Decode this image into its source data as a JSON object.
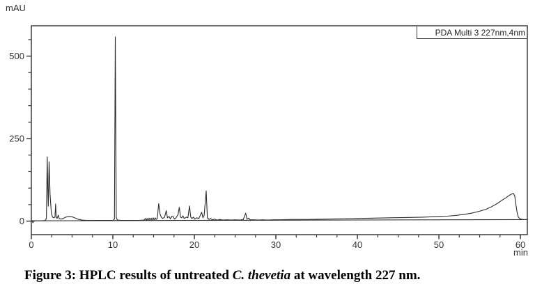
{
  "legend": {
    "label": "PDA Multi 3 227nm,4nm"
  },
  "caption": {
    "prefix": "Figure 3: HPLC results of untreated ",
    "species": "C. thevetia",
    "suffix": " at wavelength 227 nm."
  },
  "chart_data": {
    "type": "line",
    "title": "",
    "xlabel": "min",
    "ylabel": "mAU",
    "xlim": [
      0,
      60.85
    ],
    "ylim": [
      -41,
      592
    ],
    "x_ticks_major": [
      0,
      10,
      20,
      30,
      40,
      50,
      60
    ],
    "x_minor_step": 2.5,
    "y_ticks_major": [
      0,
      250,
      500
    ],
    "y_minor_step": 50,
    "grid": false,
    "legend_position": "top-right",
    "axis_color": "#3a3a3a",
    "series": [
      {
        "name": "PDA Multi 3 227nm,4nm",
        "color": "#2b2b2b",
        "points": [
          [
            0,
            1
          ],
          [
            0.1,
            1
          ],
          [
            0.2,
            -5
          ],
          [
            0.3,
            0
          ],
          [
            0.6,
            1
          ],
          [
            1.0,
            1
          ],
          [
            1.4,
            1
          ],
          [
            1.7,
            2
          ],
          [
            1.85,
            8
          ],
          [
            1.95,
            195
          ],
          [
            2.02,
            100
          ],
          [
            2.08,
            45
          ],
          [
            2.18,
            180
          ],
          [
            2.3,
            80
          ],
          [
            2.45,
            25
          ],
          [
            2.6,
            12
          ],
          [
            2.75,
            10
          ],
          [
            2.9,
            12
          ],
          [
            2.97,
            52
          ],
          [
            3.05,
            12
          ],
          [
            3.15,
            8
          ],
          [
            3.3,
            18
          ],
          [
            3.42,
            8
          ],
          [
            3.6,
            6
          ],
          [
            3.9,
            8
          ],
          [
            4.2,
            12
          ],
          [
            4.6,
            14
          ],
          [
            5.0,
            13
          ],
          [
            5.4,
            9
          ],
          [
            5.8,
            5
          ],
          [
            6.2,
            3
          ],
          [
            6.8,
            2
          ],
          [
            7.5,
            2
          ],
          [
            8.2,
            2
          ],
          [
            9.0,
            2
          ],
          [
            9.6,
            2
          ],
          [
            10.0,
            2
          ],
          [
            10.2,
            6
          ],
          [
            10.3,
            558
          ],
          [
            10.42,
            12
          ],
          [
            10.55,
            3
          ],
          [
            11.0,
            2
          ],
          [
            11.8,
            2
          ],
          [
            12.5,
            2
          ],
          [
            13.2,
            2
          ],
          [
            13.8,
            3
          ],
          [
            14.0,
            8
          ],
          [
            14.08,
            2
          ],
          [
            14.2,
            8
          ],
          [
            14.3,
            2
          ],
          [
            14.45,
            9
          ],
          [
            14.55,
            3
          ],
          [
            14.7,
            9
          ],
          [
            14.8,
            3
          ],
          [
            14.95,
            10
          ],
          [
            15.05,
            4
          ],
          [
            15.2,
            10
          ],
          [
            15.3,
            5
          ],
          [
            15.45,
            8
          ],
          [
            15.62,
            53
          ],
          [
            15.8,
            20
          ],
          [
            15.95,
            12
          ],
          [
            16.1,
            8
          ],
          [
            16.35,
            12
          ],
          [
            16.55,
            32
          ],
          [
            16.7,
            10
          ],
          [
            16.9,
            14
          ],
          [
            17.05,
            7
          ],
          [
            17.25,
            15
          ],
          [
            17.4,
            14
          ],
          [
            17.55,
            6
          ],
          [
            17.75,
            10
          ],
          [
            18.0,
            20
          ],
          [
            18.15,
            42
          ],
          [
            18.3,
            12
          ],
          [
            18.45,
            10
          ],
          [
            18.6,
            16
          ],
          [
            18.75,
            8
          ],
          [
            19.0,
            12
          ],
          [
            19.2,
            10
          ],
          [
            19.4,
            46
          ],
          [
            19.55,
            12
          ],
          [
            19.7,
            8
          ],
          [
            19.9,
            12
          ],
          [
            20.05,
            6
          ],
          [
            20.3,
            10
          ],
          [
            20.55,
            8
          ],
          [
            20.9,
            27
          ],
          [
            21.05,
            10
          ],
          [
            21.2,
            18
          ],
          [
            21.45,
            92
          ],
          [
            21.6,
            10
          ],
          [
            21.8,
            5
          ],
          [
            22.0,
            8
          ],
          [
            22.2,
            4
          ],
          [
            22.5,
            6
          ],
          [
            22.8,
            3
          ],
          [
            23.1,
            5
          ],
          [
            23.5,
            3
          ],
          [
            24.0,
            4
          ],
          [
            24.5,
            3
          ],
          [
            25.0,
            4
          ],
          [
            25.6,
            3
          ],
          [
            26.0,
            5
          ],
          [
            26.3,
            24
          ],
          [
            26.45,
            6
          ],
          [
            26.65,
            9
          ],
          [
            26.85,
            4
          ],
          [
            27.3,
            4
          ],
          [
            27.8,
            3
          ],
          [
            28.4,
            4
          ],
          [
            29.0,
            3
          ],
          [
            29.6,
            4
          ],
          [
            30.5,
            4
          ],
          [
            32,
            5
          ],
          [
            34,
            5
          ],
          [
            36,
            6
          ],
          [
            38,
            7
          ],
          [
            40,
            8
          ],
          [
            42,
            9
          ],
          [
            44,
            10
          ],
          [
            46,
            11
          ],
          [
            48,
            12
          ],
          [
            50,
            14
          ],
          [
            51,
            15
          ],
          [
            52,
            17
          ],
          [
            53,
            20
          ],
          [
            54,
            24
          ],
          [
            55,
            30
          ],
          [
            55.8,
            36
          ],
          [
            56.5,
            44
          ],
          [
            57.2,
            54
          ],
          [
            57.8,
            64
          ],
          [
            58.3,
            72
          ],
          [
            58.7,
            79
          ],
          [
            59.0,
            83
          ],
          [
            59.15,
            84
          ],
          [
            59.3,
            76
          ],
          [
            59.45,
            50
          ],
          [
            59.6,
            25
          ],
          [
            59.75,
            12
          ],
          [
            59.95,
            7
          ],
          [
            60.2,
            5
          ],
          [
            60.5,
            4.5
          ],
          [
            60.85,
            4.5
          ]
        ]
      },
      {
        "name": "baseline",
        "color": "#2b2b2b",
        "points": [
          [
            0,
            1
          ],
          [
            60.85,
            4.5
          ]
        ]
      }
    ]
  }
}
